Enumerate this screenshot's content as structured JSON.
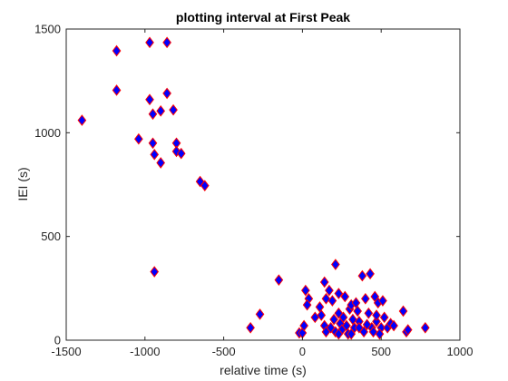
{
  "chart_data": {
    "type": "scatter",
    "title": "plotting interval at First Peak",
    "xlabel": "relative time (s)",
    "ylabel": "IEI (s)",
    "xlim": [
      -1500,
      1000
    ],
    "ylim": [
      0,
      1500
    ],
    "xticks": [
      -1500,
      -1000,
      -500,
      0,
      500,
      1000
    ],
    "yticks": [
      0,
      500,
      1000,
      1500
    ],
    "xtick_labels": [
      "-1500",
      "-1000",
      "-500",
      "0",
      "500",
      "1000"
    ],
    "ytick_labels": [
      "0",
      "500",
      "1000",
      "1500"
    ],
    "grid": false,
    "marker": "diamond",
    "marker_face_color": "#0000ff",
    "marker_edge_color": "#ff0000",
    "points": [
      [
        -1400,
        1060
      ],
      [
        -1180,
        1395
      ],
      [
        -1180,
        1205
      ],
      [
        -970,
        1435
      ],
      [
        -860,
        1435
      ],
      [
        -1040,
        970
      ],
      [
        -970,
        1160
      ],
      [
        -860,
        1190
      ],
      [
        -950,
        1090
      ],
      [
        -900,
        1105
      ],
      [
        -820,
        1110
      ],
      [
        -950,
        950
      ],
      [
        -800,
        950
      ],
      [
        -940,
        895
      ],
      [
        -800,
        910
      ],
      [
        -770,
        900
      ],
      [
        -900,
        855
      ],
      [
        -650,
        765
      ],
      [
        -620,
        745
      ],
      [
        -940,
        330
      ],
      [
        -330,
        60
      ],
      [
        -270,
        125
      ],
      [
        -150,
        290
      ],
      [
        -20,
        35
      ],
      [
        0,
        35
      ],
      [
        10,
        70
      ],
      [
        20,
        240
      ],
      [
        40,
        200
      ],
      [
        30,
        170
      ],
      [
        80,
        110
      ],
      [
        120,
        120
      ],
      [
        110,
        160
      ],
      [
        140,
        280
      ],
      [
        170,
        240
      ],
      [
        150,
        200
      ],
      [
        190,
        190
      ],
      [
        210,
        365
      ],
      [
        230,
        225
      ],
      [
        140,
        70
      ],
      [
        150,
        40
      ],
      [
        180,
        60
      ],
      [
        200,
        100
      ],
      [
        210,
        40
      ],
      [
        230,
        130
      ],
      [
        240,
        80
      ],
      [
        250,
        50
      ],
      [
        260,
        110
      ],
      [
        280,
        70
      ],
      [
        290,
        30
      ],
      [
        300,
        150
      ],
      [
        310,
        170
      ],
      [
        320,
        100
      ],
      [
        330,
        60
      ],
      [
        340,
        180
      ],
      [
        350,
        140
      ],
      [
        360,
        90
      ],
      [
        380,
        310
      ],
      [
        400,
        200
      ],
      [
        430,
        320
      ],
      [
        420,
        130
      ],
      [
        440,
        60
      ],
      [
        460,
        210
      ],
      [
        470,
        90
      ],
      [
        480,
        180
      ],
      [
        500,
        60
      ],
      [
        510,
        190
      ],
      [
        520,
        110
      ],
      [
        540,
        60
      ],
      [
        560,
        80
      ],
      [
        580,
        70
      ],
      [
        640,
        140
      ],
      [
        660,
        40
      ],
      [
        670,
        50
      ],
      [
        780,
        60
      ],
      [
        360,
        60
      ],
      [
        390,
        40
      ],
      [
        410,
        75
      ],
      [
        450,
        40
      ],
      [
        470,
        120
      ],
      [
        490,
        30
      ],
      [
        270,
        210
      ],
      [
        310,
        30
      ],
      [
        230,
        30
      ]
    ]
  }
}
